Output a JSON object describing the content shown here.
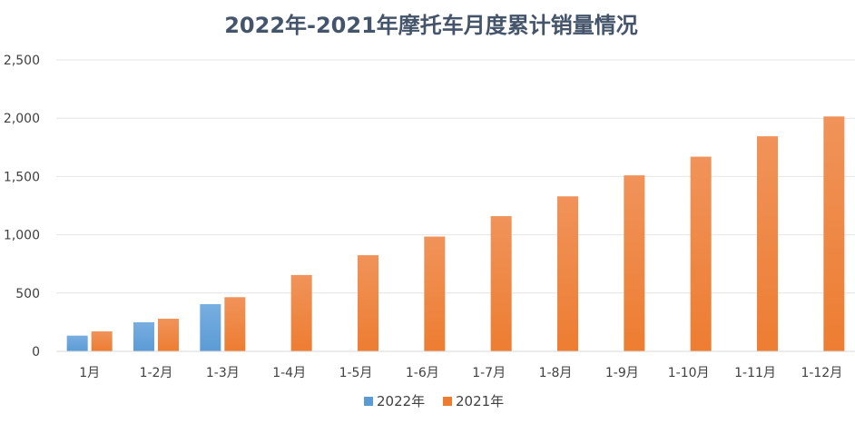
{
  "chart_data": {
    "type": "bar",
    "title": "2022年-2021年摩托车月度累计销量情况",
    "xlabel": "",
    "ylabel": "",
    "categories": [
      "1月",
      "1-2月",
      "1-3月",
      "1-4月",
      "1-5月",
      "1-6月",
      "1-7月",
      "1-8月",
      "1-9月",
      "1-10月",
      "1-11月",
      "1-12月"
    ],
    "series": [
      {
        "name": "2022年",
        "color": "#5b9bd5",
        "values": [
          135,
          250,
          405,
          null,
          null,
          null,
          null,
          null,
          null,
          null,
          null,
          null
        ]
      },
      {
        "name": "2021年",
        "color": "#ed7d31",
        "values": [
          172,
          280,
          465,
          655,
          825,
          985,
          1160,
          1330,
          1510,
          1670,
          1845,
          2015
        ]
      }
    ],
    "ylim": [
      0,
      2500
    ],
    "yticks": [
      0,
      500,
      1000,
      1500,
      2000,
      2500
    ],
    "ytick_labels": [
      "0",
      "500",
      "1,000",
      "1,500",
      "2,000",
      "2,500"
    ],
    "grid": true,
    "legend_position": "bottom"
  }
}
